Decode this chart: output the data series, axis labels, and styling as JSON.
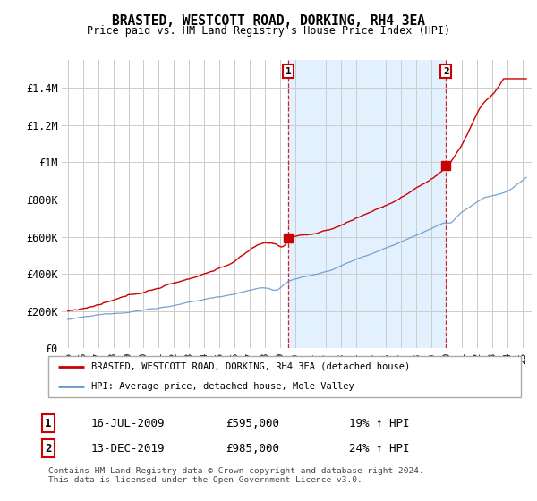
{
  "title": "BRASTED, WESTCOTT ROAD, DORKING, RH4 3EA",
  "subtitle": "Price paid vs. HM Land Registry's House Price Index (HPI)",
  "legend_line1": "BRASTED, WESTCOTT ROAD, DORKING, RH4 3EA (detached house)",
  "legend_line2": "HPI: Average price, detached house, Mole Valley",
  "marker1_date": "16-JUL-2009",
  "marker1_price": 595000,
  "marker1_label": "19% ↑ HPI",
  "marker1_x": 2009.54,
  "marker2_date": "13-DEC-2019",
  "marker2_price": 985000,
  "marker2_label": "24% ↑ HPI",
  "marker2_x": 2019.95,
  "xlabel_years": [
    "95",
    "96",
    "97",
    "98",
    "99",
    "00",
    "01",
    "02",
    "03",
    "04",
    "05",
    "06",
    "07",
    "08",
    "09",
    "10",
    "11",
    "12",
    "13",
    "14",
    "15",
    "16",
    "17",
    "18",
    "19",
    "20",
    "21",
    "22",
    "23",
    "24",
    "25"
  ],
  "xtick_positions": [
    1995,
    1996,
    1997,
    1998,
    1999,
    2000,
    2001,
    2002,
    2003,
    2004,
    2005,
    2006,
    2007,
    2008,
    2009,
    2010,
    2011,
    2012,
    2013,
    2014,
    2015,
    2016,
    2017,
    2018,
    2019,
    2020,
    2021,
    2022,
    2023,
    2024,
    2025
  ],
  "yticks": [
    0,
    200000,
    400000,
    600000,
    800000,
    1000000,
    1200000,
    1400000
  ],
  "ylabels": [
    "£0",
    "£200K",
    "£400K",
    "£600K",
    "£800K",
    "£1M",
    "£1.2M",
    "£1.4M"
  ],
  "ylim": [
    0,
    1550000
  ],
  "red_color": "#cc0000",
  "blue_color": "#6699cc",
  "shade_color": "#ddeeff",
  "footer": "Contains HM Land Registry data © Crown copyright and database right 2024.\nThis data is licensed under the Open Government Licence v3.0.",
  "background_color": "#ffffff",
  "grid_color": "#cccccc"
}
